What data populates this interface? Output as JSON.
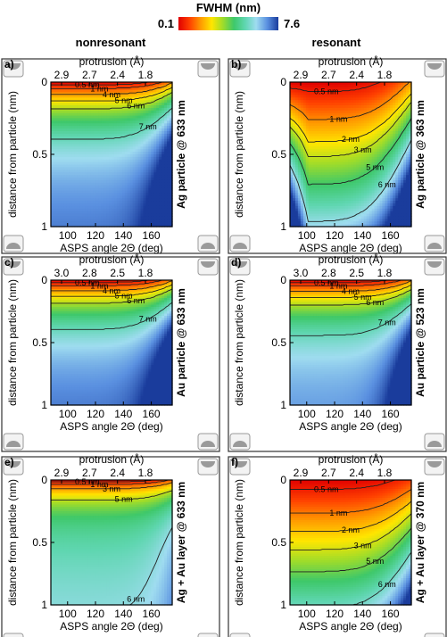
{
  "colorbar": {
    "title": "FWHM (nm)",
    "min_label": "0.1",
    "max_label": "7.6",
    "colors": [
      "#e00000",
      "#ff4000",
      "#ff9a00",
      "#ffe600",
      "#9fdc2a",
      "#3ec86a",
      "#5fd6b0",
      "#9fdcf0",
      "#5a90e0",
      "#1a3c9c"
    ]
  },
  "columns": {
    "left": "nonresonant",
    "right": "resonant"
  },
  "chart_data": [
    {
      "type": "heatmap",
      "panel_label": "a)",
      "side_label": "Ag particle @ 633 nm",
      "xlabel": "ASPS angle 2Θ (deg)",
      "ylabel": "distance from particle (nm)",
      "top_axis_label": "protrusion (Å)",
      "xticks": [
        "100",
        "120",
        "140",
        "160"
      ],
      "yticks": [
        "0",
        "0.5",
        "1"
      ],
      "top_ticks": [
        "2.9",
        "2.7",
        "2.4",
        "1.8"
      ],
      "xlim": [
        88,
        175
      ],
      "ylim": [
        1,
        0
      ],
      "contour_labels": [
        "0.5 nm",
        "1 nm",
        "4 nm",
        "5 nm",
        "6 nm",
        "7 nm"
      ],
      "contours": [
        0.05,
        0.12,
        0.22,
        0.32,
        0.42,
        0.68
      ],
      "surface": "smooth",
      "max_ratio": 0.95
    },
    {
      "type": "heatmap",
      "panel_label": "b)",
      "side_label": "Ag particle @ 363 nm",
      "xlabel": "ASPS angle 2Θ (deg)",
      "ylabel": "distance from particle (nm)",
      "top_axis_label": "protrusion (Å)",
      "xticks": [
        "100",
        "120",
        "140",
        "160"
      ],
      "yticks": [
        "0",
        "0.5",
        "1"
      ],
      "top_ticks": [
        "2.9",
        "2.7",
        "2.4",
        "1.8"
      ],
      "xlim": [
        88,
        175
      ],
      "ylim": [
        1,
        0
      ],
      "contour_labels": [
        "0.5 nm",
        "1 nm",
        "2 nm",
        "3 nm",
        "5 nm",
        "6 nm"
      ],
      "contours": [
        0.05,
        0.2,
        0.32,
        0.4,
        0.55,
        0.75
      ],
      "surface": "resonant",
      "max_ratio": 0.78
    },
    {
      "type": "heatmap",
      "panel_label": "c)",
      "side_label": "Au particle @ 633 nm",
      "xlabel": "ASPS angle 2Θ (deg)",
      "ylabel": "distance from particle (nm)",
      "top_axis_label": "protrusion (Å)",
      "xticks": [
        "100",
        "120",
        "140",
        "160"
      ],
      "yticks": [
        "0",
        "0.5",
        "1"
      ],
      "top_ticks": [
        "3.0",
        "2.8",
        "2.5",
        "1.8"
      ],
      "xlim": [
        88,
        175
      ],
      "ylim": [
        1,
        0
      ],
      "contour_labels": [
        "0.5 nm",
        "1 nm",
        "4 nm",
        "5 nm",
        "6 nm",
        "7 nm"
      ],
      "contours": [
        0.05,
        0.12,
        0.22,
        0.32,
        0.42,
        0.68
      ],
      "surface": "smooth",
      "max_ratio": 0.95
    },
    {
      "type": "heatmap",
      "panel_label": "d)",
      "side_label": "Au particle @ 523 nm",
      "xlabel": "ASPS angle 2Θ (deg)",
      "ylabel": "distance from particle (nm)",
      "top_axis_label": "protrusion (Å)",
      "xticks": [
        "100",
        "120",
        "140",
        "160"
      ],
      "yticks": [
        "0",
        "0.5",
        "1"
      ],
      "top_ticks": [
        "3.0",
        "2.8",
        "2.5",
        "1.8"
      ],
      "xlim": [
        88,
        175
      ],
      "ylim": [
        1,
        0
      ],
      "contour_labels": [
        "0.5 nm",
        "1 nm",
        "4 nm",
        "5 nm",
        "6 nm",
        "7 nm"
      ],
      "contours": [
        0.05,
        0.12,
        0.22,
        0.32,
        0.42,
        0.68
      ],
      "surface": "smooth",
      "max_ratio": 0.9
    },
    {
      "type": "heatmap",
      "panel_label": "e)",
      "side_label": "Ag + Au layer @ 633 nm",
      "xlabel": "ASPS angle 2Θ (deg)",
      "ylabel": "distance from particle (nm)",
      "top_axis_label": "protrusion (Å)",
      "xticks": [
        "100",
        "120",
        "140",
        "160"
      ],
      "yticks": [
        "0",
        "0.5",
        "1"
      ],
      "top_ticks": [
        "2.9",
        "2.7",
        "2.4",
        "1.8"
      ],
      "xlim": [
        88,
        175
      ],
      "ylim": [
        1,
        0
      ],
      "contour_labels": [
        "0.5 nm",
        "1 nm",
        "3 nm",
        "5 nm",
        "6 nm"
      ],
      "contours": [
        0.05,
        0.12,
        0.22,
        0.4,
        0.75
      ],
      "surface": "flat",
      "max_ratio": 0.78
    },
    {
      "type": "heatmap",
      "panel_label": "f)",
      "side_label": "Ag + Au layer @ 370 nm",
      "xlabel": "ASPS angle 2Θ (deg)",
      "ylabel": "distance from particle (nm)",
      "top_axis_label": "protrusion (Å)",
      "xticks": [
        "100",
        "120",
        "140",
        "160"
      ],
      "yticks": [
        "0",
        "0.5",
        "1"
      ],
      "top_ticks": [
        "2.9",
        "2.7",
        "2.4",
        "1.8"
      ],
      "xlim": [
        88,
        175
      ],
      "ylim": [
        1,
        0
      ],
      "contour_labels": [
        "0.5 nm",
        "1 nm",
        "2 nm",
        "3 nm",
        "5 nm",
        "6 nm"
      ],
      "contours": [
        0.05,
        0.18,
        0.28,
        0.38,
        0.5,
        0.7
      ],
      "surface": "resonant-f",
      "max_ratio": 0.72
    }
  ]
}
